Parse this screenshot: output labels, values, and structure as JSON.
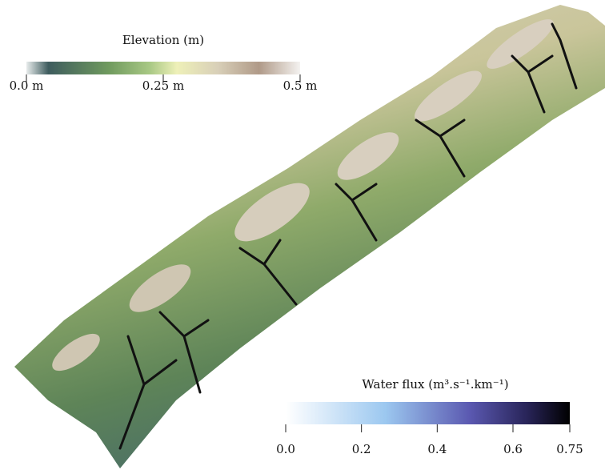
{
  "colorbars": [
    {
      "title": "Elevation (m)",
      "range": [
        0,
        0.5
      ],
      "ticks": [
        {
          "value": 0,
          "label": "0.0 m"
        },
        {
          "value": 0.25,
          "label": "0.25 m"
        },
        {
          "value": 0.5,
          "label": "0.5 m"
        }
      ]
    },
    {
      "title": "Water flux (m³.s⁻¹.km⁻¹)",
      "range": [
        0,
        0.75
      ],
      "ticks": [
        {
          "value": 0,
          "label": "0.0"
        },
        0.2,
        0.4,
        0.6,
        0.75
      ]
    }
  ]
}
